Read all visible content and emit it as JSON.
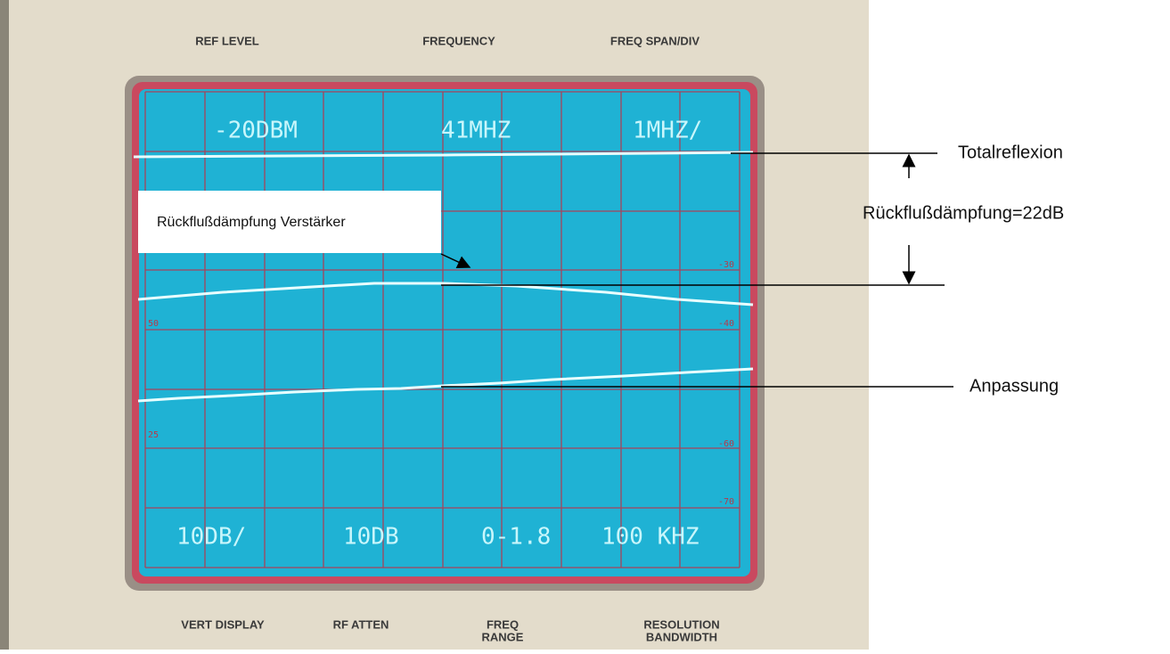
{
  "panel": {
    "top_labels": [
      "REF LEVEL",
      "FREQUENCY",
      "FREQ SPAN/DIV"
    ],
    "bottom_labels": [
      "VERT DISPLAY",
      "RF ATTEN",
      "FREQ",
      "RANGE",
      "RESOLUTION",
      "BANDWIDTH"
    ]
  },
  "screen": {
    "top_readouts": [
      "-20DBM",
      "41MHZ",
      "1MHZ/"
    ],
    "bottom_readouts": [
      "10DB/",
      "10DB",
      "0-1.8",
      "100 KHZ"
    ],
    "scale_labels": [
      "-30",
      "-40",
      "-60",
      "-70",
      "50",
      "25"
    ]
  },
  "annotations": {
    "total": "Totalreflexion",
    "return_loss": "Rückflußdämpfung=22dB",
    "amplifier": "Rückflußdämpfung Verstärker",
    "match": "Anpassung"
  }
}
